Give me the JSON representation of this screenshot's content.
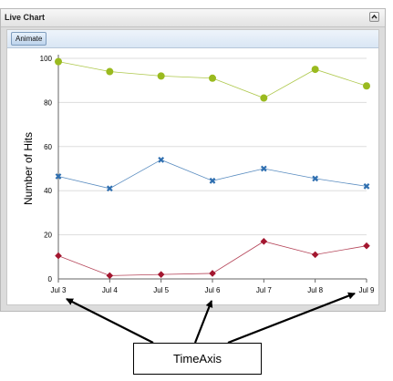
{
  "panel": {
    "title": "Live Chart",
    "collapse_icon": "chevron-up-icon"
  },
  "toolbar": {
    "animate_label": "Animate"
  },
  "chart_data": {
    "type": "line",
    "categories": [
      "Jul 3",
      "Jul 4",
      "Jul 5",
      "Jul 6",
      "Jul 7",
      "Jul 8",
      "Jul 9"
    ],
    "ylabel": "Number of Hits",
    "ylim": [
      0,
      100
    ],
    "yticks": [
      0,
      20,
      40,
      60,
      80,
      100
    ],
    "grid": true,
    "series": [
      {
        "color": "#9aba1f",
        "marker": "circle",
        "values": [
          98.5,
          94,
          92,
          91,
          82,
          95,
          87.5
        ]
      },
      {
        "color": "#2f6fb0",
        "marker": "cross",
        "values": [
          46.5,
          41,
          54,
          44.5,
          50,
          45.5,
          42
        ]
      },
      {
        "color": "#a3162f",
        "marker": "diamond",
        "values": [
          10.5,
          1.5,
          2,
          2.5,
          17,
          11,
          15
        ]
      }
    ]
  },
  "annotation": {
    "label": "TimeAxis"
  }
}
